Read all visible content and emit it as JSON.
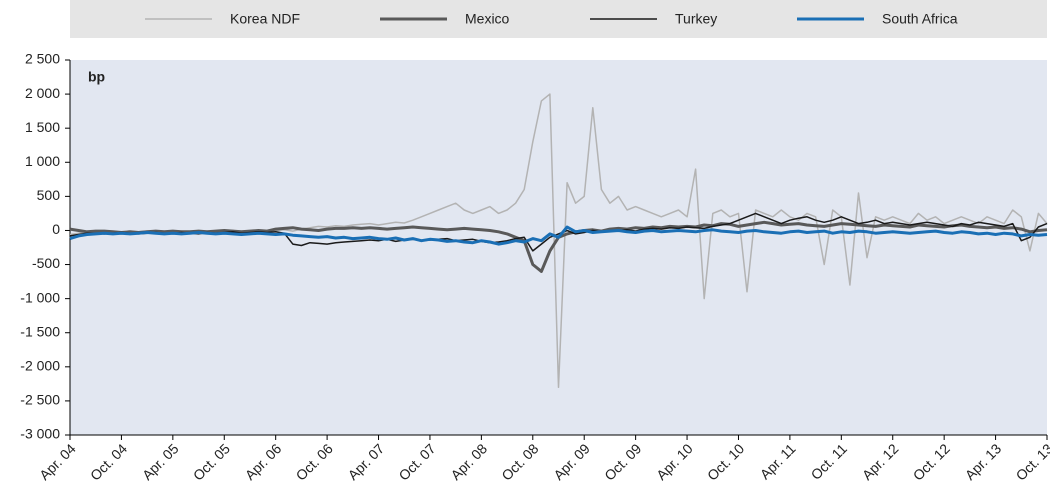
{
  "chart_data": {
    "type": "line",
    "annotation": "bp",
    "legend": "top",
    "grid": false,
    "ylim": [
      -3000,
      2500
    ],
    "yticks": [
      {
        "value": 2500,
        "label": "2 500"
      },
      {
        "value": 2000,
        "label": "2 000"
      },
      {
        "value": 1500,
        "label": "1 500"
      },
      {
        "value": 1000,
        "label": "1 000"
      },
      500,
      0,
      -500,
      {
        "value": -1000,
        "label": "-1 000"
      },
      {
        "value": -1500,
        "label": "-1 500"
      },
      {
        "value": -2000,
        "label": "-2 000"
      },
      {
        "value": -2500,
        "label": "-2 500"
      },
      {
        "value": -3000,
        "label": "-3 000"
      }
    ],
    "categories": [
      "Apr. 04",
      null,
      null,
      null,
      null,
      null,
      "Oct. 04",
      null,
      null,
      null,
      null,
      null,
      "Apr. 05",
      null,
      null,
      null,
      null,
      null,
      "Oct. 05",
      null,
      null,
      null,
      null,
      null,
      "Apr. 06",
      null,
      null,
      null,
      null,
      null,
      "Oct. 06",
      null,
      null,
      null,
      null,
      null,
      "Apr. 07",
      null,
      null,
      null,
      null,
      null,
      "Oct. 07",
      null,
      null,
      null,
      null,
      null,
      "Apr. 08",
      null,
      null,
      null,
      null,
      null,
      "Oct. 08",
      null,
      null,
      null,
      null,
      null,
      "Apr. 09",
      null,
      null,
      null,
      null,
      null,
      "Oct. 09",
      null,
      null,
      null,
      null,
      null,
      "Apr. 10",
      null,
      null,
      null,
      null,
      null,
      "Oct. 10",
      null,
      null,
      null,
      null,
      null,
      "Apr. 11",
      null,
      null,
      null,
      null,
      null,
      "Oct. 11",
      null,
      null,
      null,
      null,
      null,
      "Apr. 12",
      null,
      null,
      null,
      null,
      null,
      "Oct. 12",
      null,
      null,
      null,
      null,
      null,
      "Apr. 13",
      null,
      null,
      null,
      null,
      null,
      "Oct. 13"
    ],
    "series": [
      {
        "name": "Korea NDF",
        "color": "#b3b3b3",
        "values": [
          -60,
          -40,
          -30,
          -20,
          -40,
          -30,
          -20,
          -30,
          -20,
          -10,
          -20,
          -30,
          -20,
          -10,
          -20,
          -30,
          -10,
          -20,
          -10,
          0,
          -20,
          -10,
          -20,
          -10,
          0,
          10,
          -10,
          20,
          40,
          60,
          50,
          70,
          60,
          80,
          90,
          100,
          80,
          100,
          120,
          110,
          150,
          200,
          250,
          300,
          350,
          400,
          300,
          250,
          300,
          350,
          250,
          300,
          400,
          600,
          1300,
          1900,
          2000,
          -2300,
          700,
          400,
          500,
          1800,
          600,
          400,
          500,
          300,
          350,
          300,
          250,
          200,
          250,
          300,
          200,
          900,
          -1000,
          250,
          300,
          200,
          250,
          -900,
          300,
          250,
          200,
          300,
          200,
          150,
          250,
          200,
          -500,
          300,
          200,
          -800,
          550,
          -400,
          200,
          150,
          200,
          150,
          100,
          250,
          150,
          200,
          100,
          150,
          200,
          150,
          100,
          200,
          150,
          100,
          300,
          200,
          -300,
          250,
          100
        ]
      },
      {
        "name": "Mexico",
        "color": "#595959",
        "values": [
          20,
          0,
          -20,
          -10,
          -10,
          -20,
          -30,
          -20,
          -30,
          -20,
          -10,
          -20,
          -10,
          -20,
          -20,
          -10,
          -20,
          -10,
          0,
          -10,
          -20,
          -10,
          0,
          -10,
          20,
          30,
          40,
          20,
          10,
          0,
          20,
          30,
          30,
          40,
          30,
          40,
          30,
          20,
          30,
          40,
          50,
          40,
          30,
          20,
          10,
          20,
          30,
          20,
          10,
          0,
          -20,
          -50,
          -100,
          -150,
          -500,
          -600,
          -300,
          -100,
          -50,
          -20,
          0,
          10,
          -10,
          20,
          30,
          20,
          40,
          30,
          50,
          40,
          60,
          50,
          60,
          50,
          80,
          70,
          100,
          90,
          60,
          80,
          100,
          120,
          100,
          80,
          90,
          100,
          80,
          70,
          60,
          80,
          100,
          90,
          80,
          70,
          60,
          80,
          70,
          60,
          50,
          80,
          70,
          60,
          50,
          70,
          80,
          60,
          50,
          40,
          50,
          30,
          40,
          20,
          -20,
          0,
          10
        ]
      },
      {
        "name": "Turkey",
        "color": "#1a1a1a",
        "values": [
          -80,
          -60,
          -40,
          -40,
          -50,
          -40,
          -30,
          -40,
          -50,
          -40,
          -30,
          -40,
          -40,
          -30,
          -40,
          -50,
          -30,
          -40,
          -30,
          -20,
          -40,
          -30,
          -20,
          -30,
          -20,
          -40,
          -200,
          -220,
          -180,
          -190,
          -200,
          -180,
          -170,
          -160,
          -150,
          -140,
          -150,
          -130,
          -160,
          -140,
          -130,
          -150,
          -140,
          -130,
          -120,
          -150,
          -140,
          -130,
          -160,
          -180,
          -170,
          -150,
          -120,
          -100,
          -300,
          -200,
          -100,
          -50,
          0,
          -50,
          -30,
          0,
          -20,
          -10,
          0,
          10,
          -10,
          20,
          30,
          20,
          40,
          30,
          50,
          40,
          30,
          60,
          80,
          100,
          150,
          200,
          250,
          200,
          150,
          100,
          150,
          180,
          200,
          150,
          120,
          150,
          200,
          150,
          100,
          120,
          150,
          100,
          120,
          100,
          80,
          100,
          120,
          100,
          80,
          60,
          100,
          80,
          120,
          100,
          80,
          60,
          100,
          -150,
          -100,
          50,
          100
        ]
      },
      {
        "name": "South Africa",
        "color": "#1a6fb5",
        "values": [
          -120,
          -80,
          -60,
          -50,
          -40,
          -50,
          -40,
          -50,
          -40,
          -30,
          -40,
          -50,
          -40,
          -50,
          -40,
          -30,
          -40,
          -50,
          -40,
          -50,
          -60,
          -50,
          -40,
          -50,
          -60,
          -50,
          -70,
          -80,
          -90,
          -100,
          -90,
          -110,
          -100,
          -120,
          -110,
          -100,
          -120,
          -130,
          -110,
          -140,
          -120,
          -150,
          -130,
          -140,
          -160,
          -150,
          -170,
          -180,
          -150,
          -170,
          -200,
          -180,
          -150,
          -170,
          -120,
          -150,
          -50,
          -100,
          50,
          -20,
          0,
          -30,
          -20,
          -10,
          0,
          -20,
          -30,
          -10,
          0,
          -20,
          -10,
          0,
          -10,
          -20,
          0,
          10,
          -10,
          -20,
          -30,
          -10,
          0,
          -20,
          -30,
          -40,
          -20,
          -10,
          -30,
          -20,
          -10,
          -40,
          -20,
          -30,
          -10,
          -20,
          -40,
          -30,
          -20,
          -30,
          -40,
          -30,
          -20,
          -10,
          -30,
          -40,
          -20,
          -30,
          -50,
          -40,
          -60,
          -40,
          -50,
          -80,
          -60,
          -70,
          -60
        ]
      }
    ]
  }
}
